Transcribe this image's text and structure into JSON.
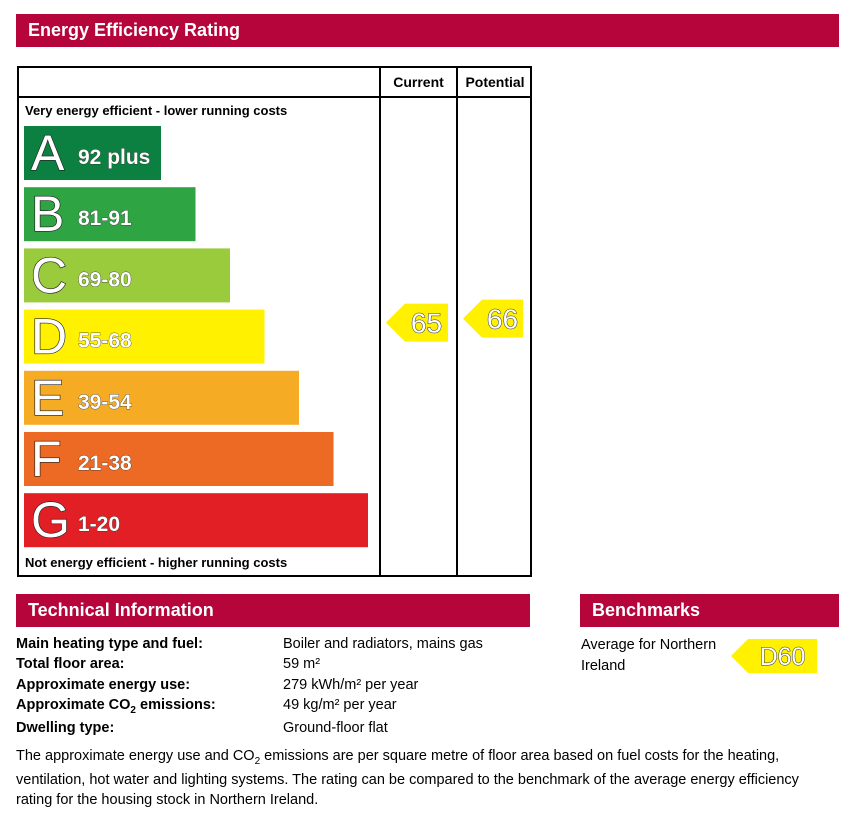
{
  "header": {
    "title": "Energy Efficiency Rating"
  },
  "columns": {
    "current": "Current",
    "potential": "Potential"
  },
  "top_label": "Very energy efficient - lower running costs",
  "bottom_label": "Not energy efficient - higher running costs",
  "chart_data": {
    "type": "bar",
    "title": "Energy Efficiency Rating",
    "bands": [
      {
        "letter": "A",
        "range": "92 plus",
        "color": "#0c8040"
      },
      {
        "letter": "B",
        "range": "81-91",
        "color": "#2ea443"
      },
      {
        "letter": "C",
        "range": "69-80",
        "color": "#9acb3c"
      },
      {
        "letter": "D",
        "range": "55-68",
        "color": "#fff100"
      },
      {
        "letter": "E",
        "range": "39-54",
        "color": "#f6ab24"
      },
      {
        "letter": "F",
        "range": "21-38",
        "color": "#ec6a23"
      },
      {
        "letter": "G",
        "range": "1-20",
        "color": "#e31f26"
      }
    ],
    "current": {
      "value": 65,
      "label": "65",
      "band": "D",
      "color": "#fff100"
    },
    "potential": {
      "value": 66,
      "label": "66",
      "band": "D",
      "color": "#fff100"
    }
  },
  "technical": {
    "title": "Technical Information",
    "rows": [
      {
        "label": "Main heating type and fuel:",
        "value": "Boiler and radiators, mains gas"
      },
      {
        "label": "Total floor area:",
        "value": "59 m²"
      },
      {
        "label": "Approximate energy use:",
        "value": "279 kWh/m² per year"
      },
      {
        "label_pre": "Approximate CO",
        "label_sub": "2",
        "label_post": " emissions:",
        "value": "49 kg/m² per year"
      },
      {
        "label": "Dwelling type:",
        "value": "Ground-floor flat"
      }
    ]
  },
  "benchmarks": {
    "title": "Benchmarks",
    "text": "Average for Northern Ireland",
    "rating": "D60",
    "color": "#fff100"
  },
  "footnote": {
    "pre": "The approximate energy use and CO",
    "sub": "2",
    "post": " emissions are per square metre of floor area based on fuel costs for the heating, ventilation, hot water and lighting systems. The rating can be compared to the benchmark of the average energy efficiency rating for the housing stock in Northern Ireland."
  }
}
